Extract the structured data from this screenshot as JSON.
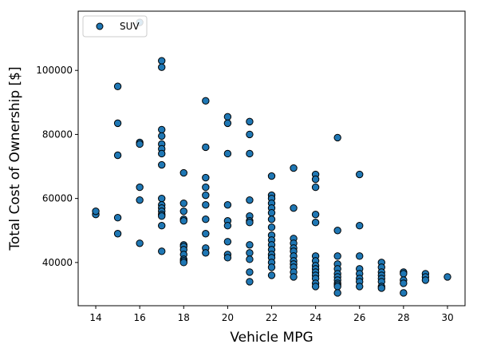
{
  "chart_data": {
    "type": "scatter",
    "xlabel": "Vehicle MPG",
    "ylabel": "Total Cost of Ownership [$]",
    "xlim": [
      13.2,
      30.8
    ],
    "ylim": [
      26500,
      118500
    ],
    "xticks": [
      14,
      16,
      18,
      20,
      22,
      24,
      26,
      28,
      30
    ],
    "yticks": [
      40000,
      60000,
      80000,
      100000
    ],
    "grid": false,
    "legend_position": "top-left",
    "series": [
      {
        "name": "SUV",
        "color": "#1f77b4",
        "edgecolor": "#000000",
        "points": [
          [
            14,
            55000
          ],
          [
            14,
            56000
          ],
          [
            15,
            95000
          ],
          [
            15,
            83500
          ],
          [
            15,
            73500
          ],
          [
            15,
            54000
          ],
          [
            15,
            49000
          ],
          [
            16,
            115000
          ],
          [
            16,
            77500
          ],
          [
            16,
            77000
          ],
          [
            16,
            63500
          ],
          [
            16,
            59500
          ],
          [
            16,
            46000
          ],
          [
            17,
            103000
          ],
          [
            17,
            101000
          ],
          [
            17,
            81500
          ],
          [
            17,
            79500
          ],
          [
            17,
            77000
          ],
          [
            17,
            75500
          ],
          [
            17,
            74000
          ],
          [
            17,
            70500
          ],
          [
            17,
            60000
          ],
          [
            17,
            58000
          ],
          [
            17,
            57000
          ],
          [
            17,
            56000
          ],
          [
            17,
            55000
          ],
          [
            17,
            54500
          ],
          [
            17,
            51500
          ],
          [
            17,
            43500
          ],
          [
            18,
            68000
          ],
          [
            18,
            58500
          ],
          [
            18,
            56000
          ],
          [
            18,
            53500
          ],
          [
            18,
            53000
          ],
          [
            18,
            45500
          ],
          [
            18,
            45000
          ],
          [
            18,
            44000
          ],
          [
            18,
            42500
          ],
          [
            18,
            41000
          ],
          [
            18,
            40500
          ],
          [
            18,
            40000
          ],
          [
            19,
            90500
          ],
          [
            19,
            76000
          ],
          [
            19,
            66500
          ],
          [
            19,
            63500
          ],
          [
            19,
            61000
          ],
          [
            19,
            58000
          ],
          [
            19,
            53500
          ],
          [
            19,
            49000
          ],
          [
            19,
            44500
          ],
          [
            19,
            43000
          ],
          [
            20,
            85500
          ],
          [
            20,
            83500
          ],
          [
            20,
            74000
          ],
          [
            20,
            58000
          ],
          [
            20,
            53000
          ],
          [
            20,
            51500
          ],
          [
            20,
            46500
          ],
          [
            20,
            42500
          ],
          [
            20,
            41500
          ],
          [
            21,
            84000
          ],
          [
            21,
            80000
          ],
          [
            21,
            74000
          ],
          [
            21,
            59500
          ],
          [
            21,
            54500
          ],
          [
            21,
            53000
          ],
          [
            21,
            52500
          ],
          [
            21,
            45500
          ],
          [
            21,
            43000
          ],
          [
            21,
            41000
          ],
          [
            21,
            37000
          ],
          [
            21,
            34000
          ],
          [
            22,
            67000
          ],
          [
            22,
            61000
          ],
          [
            22,
            60000
          ],
          [
            22,
            58500
          ],
          [
            22,
            57000
          ],
          [
            22,
            55500
          ],
          [
            22,
            53500
          ],
          [
            22,
            51000
          ],
          [
            22,
            48500
          ],
          [
            22,
            47000
          ],
          [
            22,
            45500
          ],
          [
            22,
            44000
          ],
          [
            22,
            42500
          ],
          [
            22,
            41500
          ],
          [
            22,
            40000
          ],
          [
            22,
            38500
          ],
          [
            22,
            36000
          ],
          [
            23,
            69500
          ],
          [
            23,
            57000
          ],
          [
            23,
            47500
          ],
          [
            23,
            46000
          ],
          [
            23,
            44500
          ],
          [
            23,
            43500
          ],
          [
            23,
            42000
          ],
          [
            23,
            40500
          ],
          [
            23,
            39500
          ],
          [
            23,
            38500
          ],
          [
            23,
            37000
          ],
          [
            23,
            35500
          ],
          [
            24,
            67500
          ],
          [
            24,
            66000
          ],
          [
            24,
            63500
          ],
          [
            24,
            55000
          ],
          [
            24,
            52500
          ],
          [
            24,
            42000
          ],
          [
            24,
            40500
          ],
          [
            24,
            39000
          ],
          [
            24,
            38000
          ],
          [
            24,
            37000
          ],
          [
            24,
            36000
          ],
          [
            24,
            35000
          ],
          [
            24,
            33500
          ],
          [
            24,
            32500
          ],
          [
            25,
            79000
          ],
          [
            25,
            50000
          ],
          [
            25,
            42000
          ],
          [
            25,
            39500
          ],
          [
            25,
            38000
          ],
          [
            25,
            36500
          ],
          [
            25,
            35500
          ],
          [
            25,
            34500
          ],
          [
            25,
            33500
          ],
          [
            25,
            33000
          ],
          [
            25,
            32500
          ],
          [
            25,
            30500
          ],
          [
            26,
            67500
          ],
          [
            26,
            51500
          ],
          [
            26,
            42000
          ],
          [
            26,
            38000
          ],
          [
            26,
            36500
          ],
          [
            26,
            35000
          ],
          [
            26,
            34000
          ],
          [
            26,
            32500
          ],
          [
            27,
            40000
          ],
          [
            27,
            38500
          ],
          [
            27,
            37000
          ],
          [
            27,
            36000
          ],
          [
            27,
            35000
          ],
          [
            27,
            34000
          ],
          [
            27,
            32500
          ],
          [
            27,
            32000
          ],
          [
            28,
            37000
          ],
          [
            28,
            36500
          ],
          [
            28,
            34500
          ],
          [
            28,
            33500
          ],
          [
            28,
            30500
          ],
          [
            29,
            36500
          ],
          [
            29,
            35500
          ],
          [
            29,
            34500
          ],
          [
            30,
            35500
          ]
        ]
      }
    ]
  }
}
